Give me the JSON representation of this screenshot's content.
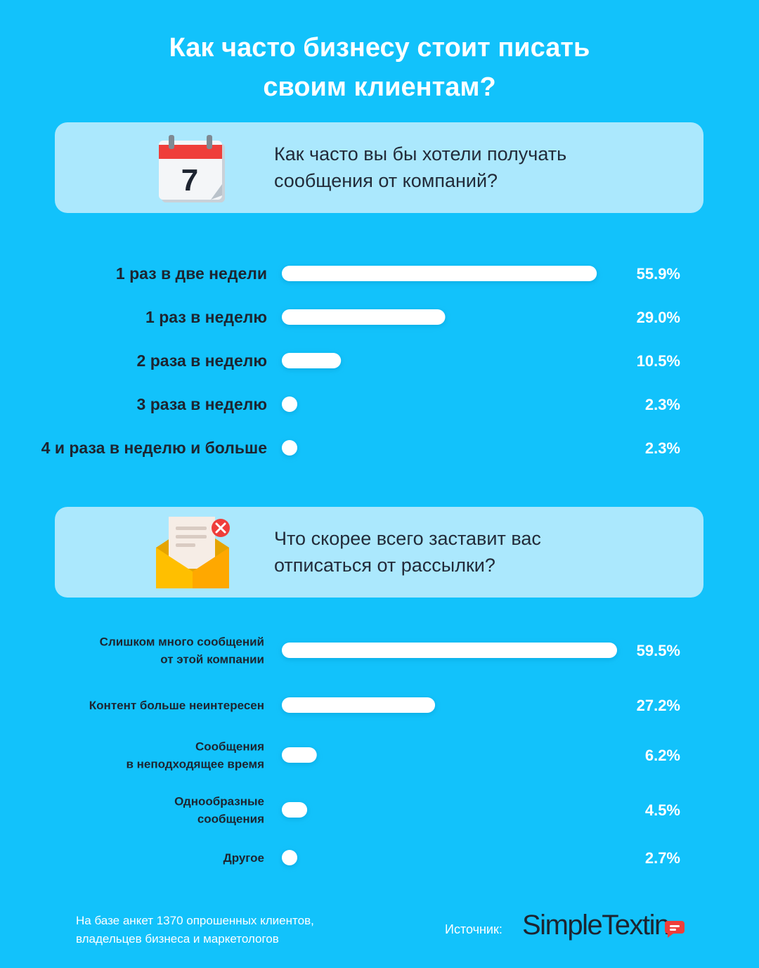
{
  "title_line1": "Как часто бизнесу стоит писать",
  "title_line2": "своим клиентам?",
  "colors": {
    "background": "#12c2fb",
    "card": "#abe8fd",
    "bar": "#ffffff",
    "label": "#1d2430"
  },
  "section1": {
    "icon": "calendar-icon",
    "calendar_day": "7",
    "question_line1": "Как часто вы бы хотели получать",
    "question_line2": "сообщения от компаний?"
  },
  "section2": {
    "icon": "envelope-unsubscribe-icon",
    "question_line1": "Что скорее всего заставит вас",
    "question_line2": "отписаться от рассылки?"
  },
  "chart_data": [
    {
      "type": "bar",
      "orientation": "horizontal",
      "categories": [
        [
          "1 раз в две недели"
        ],
        [
          "1 раз в неделю"
        ],
        [
          "2 раза в неделю"
        ],
        [
          "3 раза в неделю"
        ],
        [
          "4 и раза в неделю и больше"
        ]
      ],
      "values": [
        55.9,
        29.0,
        10.5,
        2.3,
        2.3
      ],
      "value_labels": [
        "55.9%",
        "29.0%",
        "10.5%",
        "2.3%",
        "2.3%"
      ],
      "unit": "%"
    },
    {
      "type": "bar",
      "orientation": "horizontal",
      "categories": [
        [
          "Слишком много сообщений",
          "от этой компании"
        ],
        [
          "Контент больше неинтересен"
        ],
        [
          "Сообщения",
          "в неподходящее время"
        ],
        [
          "Однообразные",
          "сообщения"
        ],
        [
          "Другое"
        ]
      ],
      "values": [
        59.5,
        27.2,
        6.2,
        4.5,
        2.7
      ],
      "value_labels": [
        "59.5%",
        "27.2%",
        "6.2%",
        "4.5%",
        "2.7%"
      ],
      "unit": "%"
    }
  ],
  "footnote_line1": "На базе анкет 1370 опрошенных клиентов,",
  "footnote_line2": "владельцев бизнеса и маркетологов",
  "source_label": "Источник:",
  "logo_text": "SimpleTextin",
  "logo_icon": "chat-bubble-icon"
}
